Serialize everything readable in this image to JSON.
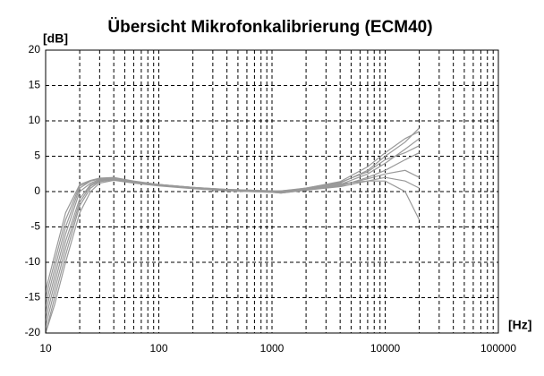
{
  "chart_data": {
    "type": "line",
    "title": "Übersicht Mikrofonkalibrierung (ECM40)",
    "ylabel": "[dB]",
    "xlabel": "[Hz]",
    "xscale": "log",
    "grid": true,
    "grid_style": "dashed",
    "xlim": [
      10,
      100000
    ],
    "xticks": [
      10,
      100,
      1000,
      10000,
      100000
    ],
    "xminorticks": [
      20,
      30,
      40,
      50,
      60,
      70,
      80,
      90,
      200,
      300,
      400,
      500,
      600,
      700,
      800,
      900,
      2000,
      3000,
      4000,
      5000,
      6000,
      7000,
      8000,
      9000,
      20000,
      30000,
      40000,
      50000,
      60000,
      70000,
      80000,
      90000
    ],
    "ylim": [
      -20,
      20
    ],
    "yticks": [
      -20,
      -15,
      -10,
      -5,
      0,
      5,
      10,
      15,
      20
    ],
    "x": [
      10,
      12,
      15,
      20,
      25,
      30,
      40,
      60,
      100,
      200,
      400,
      1000,
      1200,
      2000,
      4000,
      7000,
      10000,
      15000,
      20000
    ],
    "series": [
      {
        "color": "#999999",
        "values": [
          -16,
          -11,
          -5,
          0.5,
          1.5,
          1.8,
          1.9,
          1.4,
          1.0,
          0.6,
          0.2,
          0.0,
          0.1,
          0.4,
          1.2,
          3.0,
          5.0,
          7.0,
          9.0
        ]
      },
      {
        "color": "#999999",
        "values": [
          -18,
          -13,
          -7,
          -1,
          1.0,
          1.6,
          1.8,
          1.3,
          0.9,
          0.5,
          0.2,
          0.0,
          -0.1,
          0.3,
          1.0,
          2.5,
          4.0,
          6.0,
          7.5
        ]
      },
      {
        "color": "#999999",
        "values": [
          -20,
          -15,
          -9,
          -2,
          0.5,
          1.4,
          1.7,
          1.3,
          0.9,
          0.5,
          0.1,
          -0.1,
          -0.2,
          0.2,
          0.8,
          2.0,
          3.0,
          4.5,
          5.5
        ]
      },
      {
        "color": "#999999",
        "values": [
          -14,
          -9,
          -3,
          1.0,
          1.6,
          1.9,
          2.0,
          1.5,
          1.0,
          0.6,
          0.3,
          0.1,
          0.0,
          0.5,
          1.4,
          3.5,
          5.5,
          7.5,
          8.5
        ]
      },
      {
        "color": "#999999",
        "values": [
          -19,
          -14,
          -8,
          -1.5,
          0.8,
          1.5,
          1.8,
          1.3,
          0.9,
          0.5,
          0.2,
          0.0,
          -0.1,
          0.3,
          0.9,
          1.8,
          2.5,
          3.0,
          2.0
        ]
      },
      {
        "color": "#999999",
        "values": [
          -17,
          -12,
          -6,
          0.0,
          1.2,
          1.7,
          1.9,
          1.4,
          1.0,
          0.5,
          0.2,
          0.0,
          0.0,
          0.4,
          1.1,
          1.5,
          1.5,
          0.0,
          -4.0
        ]
      },
      {
        "color": "#999999",
        "values": [
          -15,
          -10,
          -4,
          0.8,
          1.5,
          1.8,
          1.9,
          1.4,
          1.0,
          0.6,
          0.3,
          0.1,
          0.1,
          0.5,
          1.3,
          2.8,
          4.5,
          5.5,
          6.5
        ]
      },
      {
        "color": "#999999",
        "values": [
          -20,
          -16,
          -10,
          -3,
          0.0,
          1.2,
          1.6,
          1.2,
          0.8,
          0.4,
          0.1,
          -0.1,
          -0.2,
          0.2,
          0.7,
          1.5,
          2.0,
          1.5,
          0.5
        ]
      }
    ]
  }
}
